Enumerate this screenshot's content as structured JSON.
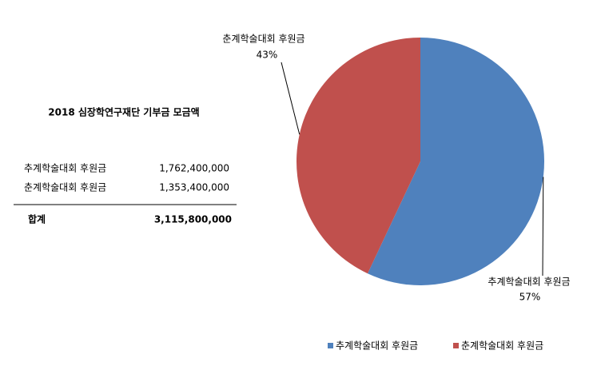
{
  "summary": {
    "title": "2018 심장학연구재단 기부금 모금액",
    "rows": [
      [
        "추계학술대회 후원금",
        "1,762,400,000"
      ],
      [
        "춘계학술대회 후원금",
        "1,353,400,000"
      ]
    ],
    "total": [
      "합계",
      "3,115,800,000"
    ]
  },
  "chart_data": {
    "type": "pie",
    "categories": [
      "추계학술대회 후원금",
      "춘계학술대회 후원금"
    ],
    "values": [
      57,
      43
    ],
    "value_labels": [
      "57%",
      "43%"
    ],
    "colors": [
      "#4f81bd",
      "#c0504d"
    ],
    "legend": "bottom"
  }
}
